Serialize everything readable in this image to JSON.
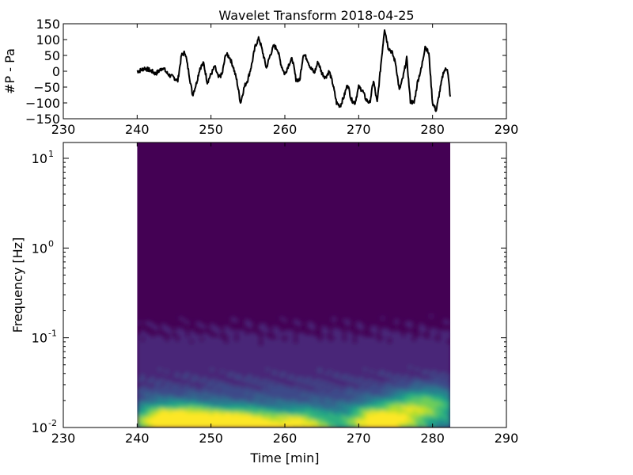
{
  "chart_data": [
    {
      "type": "line",
      "title": "Wavelet Transform 2018-04-25",
      "xlabel": "",
      "ylabel": "#P - Pa",
      "xlim": [
        230,
        290
      ],
      "ylim": [
        -150,
        150
      ],
      "xticks": [
        230,
        240,
        250,
        260,
        270,
        280,
        290
      ],
      "yticks": [
        -150,
        -100,
        -50,
        0,
        50,
        100,
        150
      ],
      "grid": false,
      "line_color": "#000000",
      "series": [
        {
          "x": [
            240.0,
            240.5,
            241.0,
            241.5,
            242.0,
            242.5,
            243.0,
            243.5,
            244.0,
            244.5,
            245.0,
            245.5,
            246.0,
            246.5,
            247.0,
            247.5,
            248.0,
            248.5,
            249.0,
            249.5,
            250.0,
            250.5,
            251.0,
            251.5,
            252.0,
            252.5,
            253.0,
            253.5,
            254.0,
            254.5,
            255.0,
            255.5,
            256.0,
            256.5,
            257.0,
            257.5,
            258.0,
            258.5,
            259.0,
            259.5,
            260.0,
            260.5,
            261.0,
            261.5,
            262.0,
            262.5,
            263.0,
            263.5,
            264.0,
            264.5,
            265.0,
            265.5,
            266.0,
            266.5,
            267.0,
            267.5,
            268.0,
            268.5,
            269.0,
            269.5,
            270.0,
            270.5,
            271.0,
            271.5,
            272.0,
            272.5,
            273.0,
            273.5,
            274.0,
            274.5,
            275.0,
            275.5,
            276.0,
            276.5,
            277.0,
            277.5,
            278.0,
            278.5,
            279.0,
            279.5,
            280.0,
            280.5,
            281.0,
            281.5,
            282.0,
            282.4
          ],
          "values": [
            0,
            3,
            10,
            5,
            0,
            -8,
            2,
            12,
            -5,
            -15,
            -20,
            -30,
            50,
            60,
            -5,
            -75,
            -40,
            10,
            25,
            -35,
            -10,
            15,
            -20,
            -10,
            55,
            45,
            15,
            -30,
            -100,
            -50,
            -25,
            20,
            80,
            105,
            60,
            10,
            50,
            80,
            70,
            20,
            -10,
            20,
            40,
            -25,
            -30,
            55,
            40,
            10,
            -5,
            30,
            -5,
            -20,
            0,
            -40,
            -100,
            -110,
            -80,
            -40,
            -90,
            -100,
            -50,
            -60,
            -90,
            -100,
            -30,
            -100,
            20,
            135,
            75,
            60,
            25,
            -60,
            -20,
            40,
            -95,
            -100,
            -30,
            10,
            80,
            55,
            -100,
            -125,
            -60,
            0,
            10,
            -80
          ]
        }
      ]
    },
    {
      "type": "heatmap",
      "title": "",
      "xlabel": "Time  [min]",
      "ylabel": "Frequency [Hz]",
      "xlim": [
        230,
        290
      ],
      "xticks": [
        230,
        240,
        250,
        260,
        270,
        280,
        290
      ],
      "ylim": [
        0.01,
        15
      ],
      "yscale": "log",
      "yticks": [
        0.01,
        0.1,
        1,
        10
      ],
      "ytick_labels": [
        "10",
        "10",
        "10",
        "10"
      ],
      "ytick_exponents": [
        "-2",
        "-1",
        "0",
        "1"
      ],
      "data_extent_x": [
        240,
        282.4
      ],
      "colormap": "viridis",
      "colors": [
        "#440154",
        "#482878",
        "#3e4989",
        "#31688e",
        "#26828e",
        "#1f9e89",
        "#35b779",
        "#6ece58",
        "#b5de2b",
        "#fde725"
      ],
      "grid": false
    }
  ]
}
